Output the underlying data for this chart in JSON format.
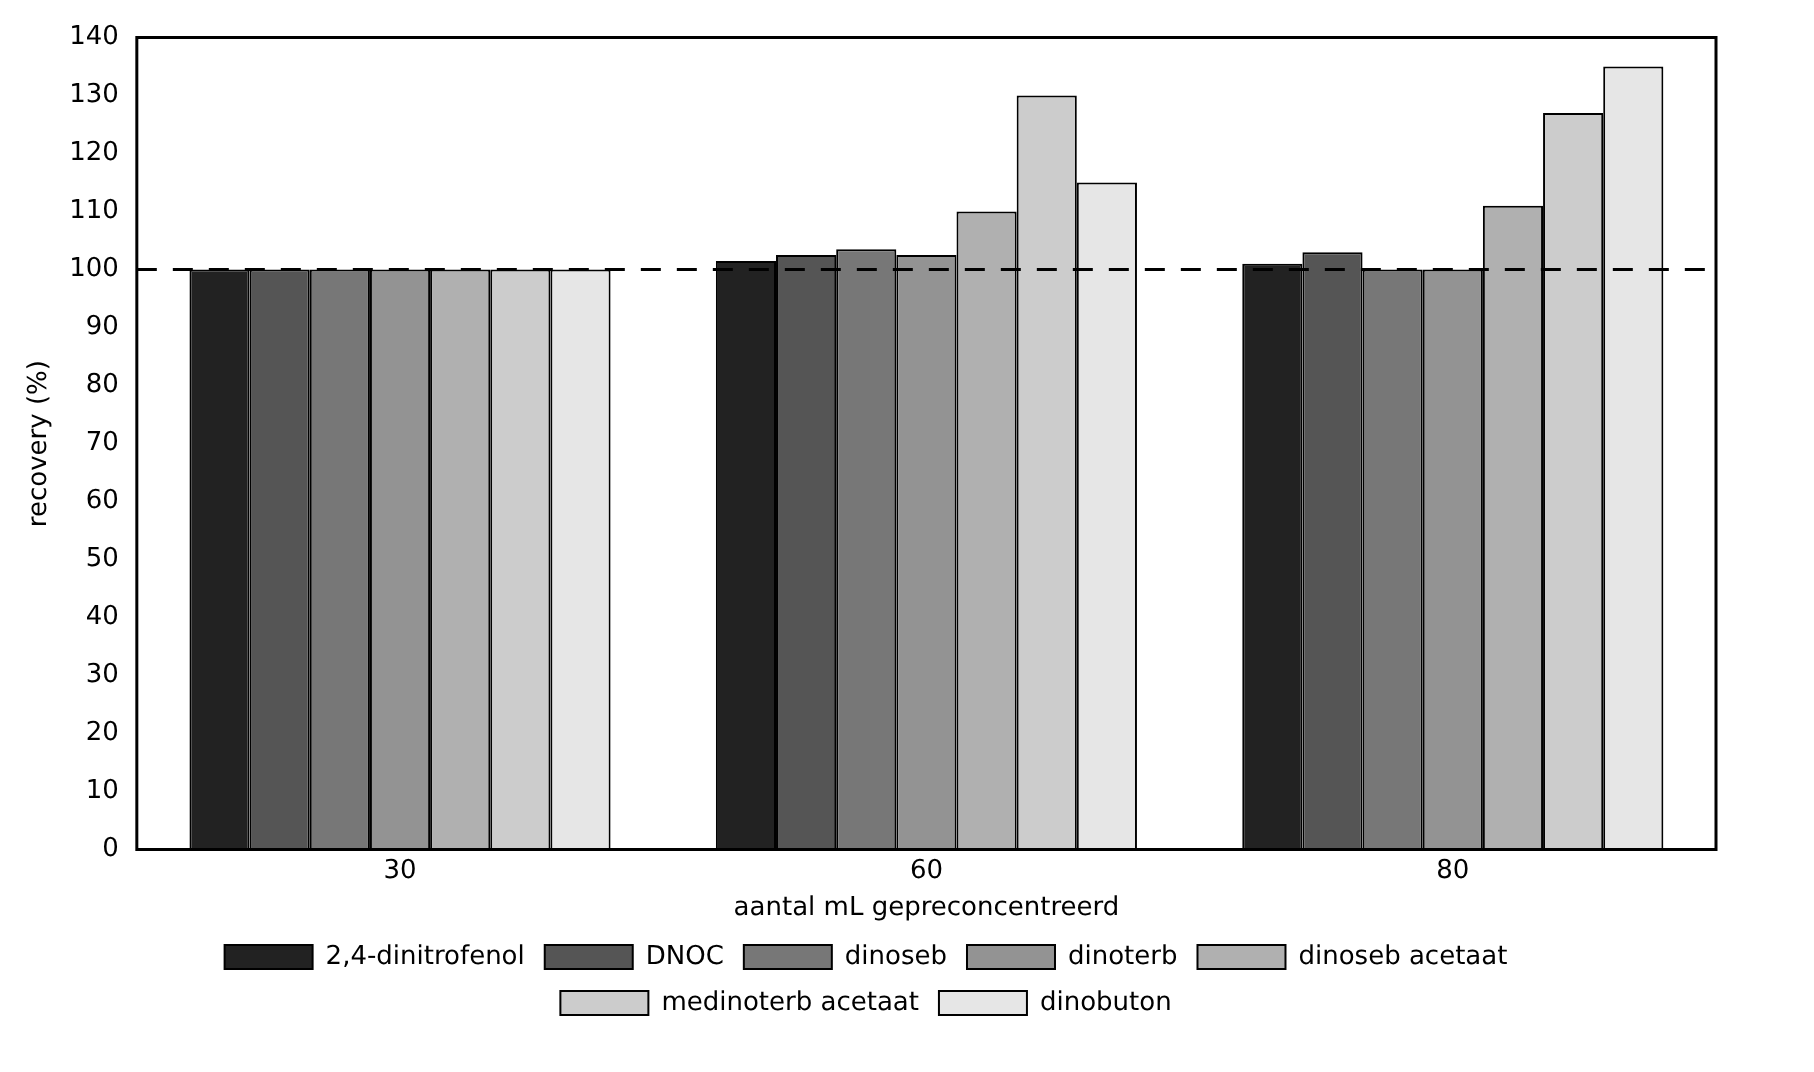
{
  "chart_data": {
    "type": "bar",
    "xlabel": "aantal mL gepreconcentreerd",
    "ylabel": "recovery (%)",
    "categories": [
      "30",
      "60",
      "80"
    ],
    "series": [
      {
        "name": "2,4-dinitrofenol",
        "color": "#222222",
        "values": [
          100,
          101.5,
          101
        ]
      },
      {
        "name": "DNOC",
        "color": "#555555",
        "values": [
          100,
          102.5,
          103
        ]
      },
      {
        "name": "dinoseb",
        "color": "#777777",
        "values": [
          100,
          103.5,
          100
        ]
      },
      {
        "name": "dinoterb",
        "color": "#939393",
        "values": [
          100,
          102.5,
          100
        ]
      },
      {
        "name": "dinoseb acetaat",
        "color": "#b0b0b0",
        "values": [
          100,
          110,
          111
        ]
      },
      {
        "name": "medinoterb acetaat",
        "color": "#cccccc",
        "values": [
          100,
          130,
          127
        ]
      },
      {
        "name": "dinobuton",
        "color": "#e6e6e6",
        "values": [
          100,
          115,
          135
        ]
      }
    ],
    "ylim": [
      0,
      140
    ],
    "yticks": [
      0,
      10,
      20,
      30,
      40,
      50,
      60,
      70,
      80,
      90,
      100,
      110,
      120,
      130,
      140
    ],
    "ref_lines": [
      {
        "axis": "y",
        "value": 100,
        "line_style": "dashed"
      }
    ],
    "grid": false,
    "legend": "bottom"
  }
}
